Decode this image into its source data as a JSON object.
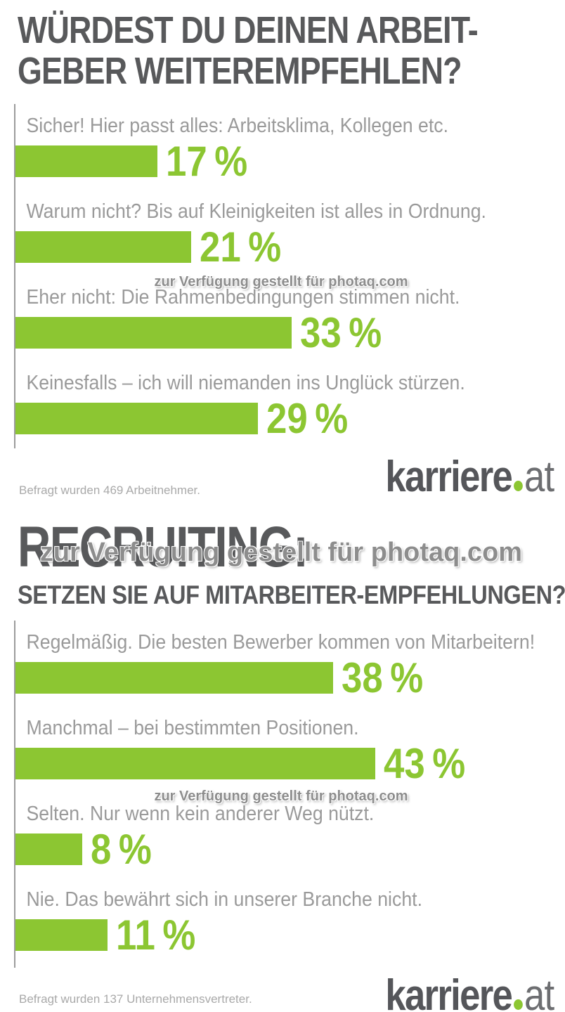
{
  "watermark_text": "zur Verfügung gestellt für photaq.com",
  "logo": {
    "name": "karriere",
    "tld": "at"
  },
  "colors": {
    "bar_green": "#8cc632",
    "title_gray": "#58595b",
    "label_gray": "#9a9a9a",
    "footnote_gray": "#a9a9a9",
    "logo_tld_gray": "#6d6e71"
  },
  "charts": [
    {
      "title_line1": "WÜRDEST DU DEINEN ARBEIT-",
      "title_line2": "GEBER WEITEREMPFEHLEN?",
      "footnote": "Befragt wurden 469 Arbeitnehmer.",
      "rows": [
        {
          "label": "Sicher! Hier passt alles: Arbeitsklima, Kollegen etc.",
          "value": 17,
          "pct_label": "17 %"
        },
        {
          "label": "Warum nicht? Bis auf Kleinigkeiten ist alles in Ordnung.",
          "value": 21,
          "pct_label": "21 %"
        },
        {
          "label": "Eher nicht: Die Rahmenbedingungen stimmen nicht.",
          "value": 33,
          "pct_label": "33 %"
        },
        {
          "label": "Keinesfalls – ich will niemanden ins Unglück stürzen.",
          "value": 29,
          "pct_label": "29 %"
        }
      ]
    },
    {
      "title": "RECRUITING:",
      "subtitle": "SETZEN SIE AUF MITARBEITER-EMPFEHLUNGEN?",
      "footnote": "Befragt wurden 137 Unternehmensvertreter.",
      "rows": [
        {
          "label": "Regelmäßig. Die besten Bewerber kommen von Mitarbeitern!",
          "value": 38,
          "pct_label": "38 %"
        },
        {
          "label": "Manchmal – bei bestimmten Positionen.",
          "value": 43,
          "pct_label": "43 %"
        },
        {
          "label": "Selten. Nur wenn kein anderer Weg nützt.",
          "value": 8,
          "pct_label": "8 %"
        },
        {
          "label": "Nie. Das bewährt sich in unserer Branche nicht.",
          "value": 11,
          "pct_label": "11 %"
        }
      ]
    }
  ],
  "chart_data": [
    {
      "type": "bar",
      "orientation": "horizontal",
      "title": "WÜRDEST DU DEINEN ARBEITGEBER WEITEREMPFEHLEN?",
      "categories": [
        "Sicher! Hier passt alles: Arbeitsklima, Kollegen etc.",
        "Warum nicht? Bis auf Kleinigkeiten ist alles in Ordnung.",
        "Eher nicht: Die Rahmenbedingungen stimmen nicht.",
        "Keinesfalls – ich will niemanden ins Unglück stürzen."
      ],
      "values": [
        17,
        21,
        33,
        29
      ],
      "unit": "%",
      "xlabel": "",
      "ylabel": "",
      "xlim": [
        0,
        50
      ],
      "grid": false,
      "legend": false,
      "bar_color": "#8cc632",
      "annotation": "Befragt wurden 469 Arbeitnehmer."
    },
    {
      "type": "bar",
      "orientation": "horizontal",
      "title": "RECRUITING: SETZEN SIE AUF MITARBEITER-EMPFEHLUNGEN?",
      "categories": [
        "Regelmäßig. Die besten Bewerber kommen von Mitarbeitern!",
        "Manchmal – bei bestimmten Positionen.",
        "Selten. Nur wenn kein anderer Weg nützt.",
        "Nie. Das bewährt sich in unserer Branche nicht."
      ],
      "values": [
        38,
        43,
        8,
        11
      ],
      "unit": "%",
      "xlabel": "",
      "ylabel": "",
      "xlim": [
        0,
        50
      ],
      "grid": false,
      "legend": false,
      "bar_color": "#8cc632",
      "annotation": "Befragt wurden 137 Unternehmensvertreter."
    }
  ]
}
